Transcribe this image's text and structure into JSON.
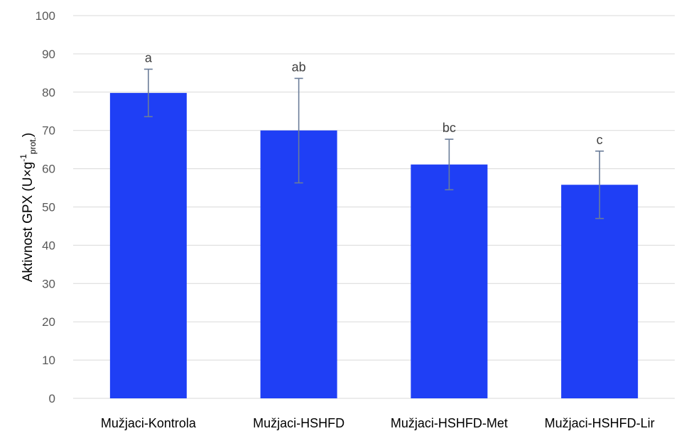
{
  "chart_data": {
    "type": "bar",
    "categories": [
      "Mužjaci-Kontrola",
      "Mužjaci-HSHFD",
      "Mužjaci-HSHFD-Met",
      "Mužjaci-HSHFD-Lir"
    ],
    "values": [
      79.8,
      70.0,
      61.1,
      55.8
    ],
    "error_low": [
      73.6,
      56.3,
      54.5,
      47.0
    ],
    "error_high": [
      86.0,
      83.6,
      67.7,
      64.6
    ],
    "annotations": [
      "a",
      "ab",
      "bc",
      "c"
    ],
    "ylabel": {
      "main": "Aktivnost GPX  (U×g",
      "superscript": "-1",
      "subscript": "prot.",
      "close": ")"
    },
    "ylim": [
      0,
      100
    ],
    "yticks": [
      0,
      10,
      20,
      30,
      40,
      50,
      60,
      70,
      80,
      90,
      100
    ],
    "grid": true,
    "colors": {
      "bar": "#1f3ff5",
      "error_bar": "#6b7d99",
      "grid": "#d9d9d9"
    }
  }
}
